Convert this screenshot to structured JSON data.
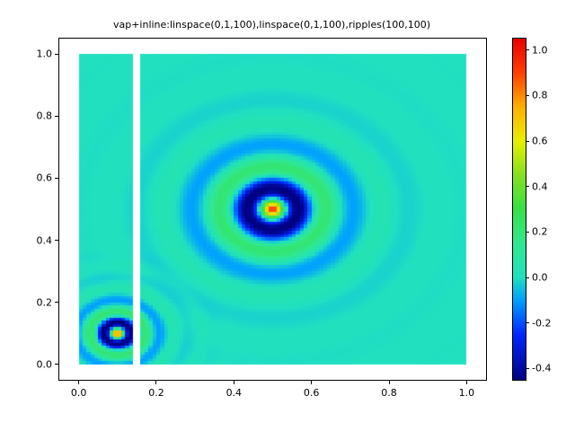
{
  "figure": {
    "background": "#ffffff"
  },
  "chart_data": {
    "type": "heatmap",
    "title": "vap+inline:linspace(0,1,100),linspace(0,1,100),ripples(100,100)",
    "x_range": [
      0,
      1
    ],
    "y_range": [
      0,
      1
    ],
    "grid_n": 100,
    "function": "ripples(100,100)",
    "ripple_sources": [
      {
        "cx": 0.5,
        "cy": 0.5,
        "amplitude": 1.0,
        "wavenumber": 44,
        "decay": 11
      },
      {
        "cx": 0.1,
        "cy": 0.1,
        "amplitude": 1.0,
        "wavenumber": 85,
        "decay": 21
      }
    ],
    "masked_column": {
      "x0": 0.14,
      "x1": 0.158
    },
    "zlim": [
      -0.45,
      1.05
    ],
    "axes_xlim": [
      -0.05,
      1.05
    ],
    "axes_ylim": [
      -0.05,
      1.05
    ],
    "x_ticks": [
      0,
      0.2,
      0.4,
      0.6,
      0.8,
      1
    ],
    "x_tick_labels": [
      "0.0",
      "0.2",
      "0.4",
      "0.6",
      "0.8",
      "1.0"
    ],
    "y_ticks": [
      0,
      0.2,
      0.4,
      0.6,
      0.8,
      1
    ],
    "y_tick_labels": [
      "0.0",
      "0.2",
      "0.4",
      "0.6",
      "0.8",
      "1.0"
    ],
    "colorbar": {
      "ticks": [
        1,
        0.8,
        0.6,
        0.4,
        0.2,
        0,
        -0.2,
        -0.4
      ],
      "tick_labels": [
        "1.0",
        "0.8",
        "0.6",
        "0.4",
        "0.2",
        "0.0",
        "-0.2",
        "-0.4"
      ]
    },
    "colormap_stops": [
      [
        -0.45,
        "#000082"
      ],
      [
        -0.25,
        "#0028ff"
      ],
      [
        -0.1,
        "#00a0ff"
      ],
      [
        0.0,
        "#20e0c0"
      ],
      [
        0.15,
        "#30e890"
      ],
      [
        0.3,
        "#38e048"
      ],
      [
        0.45,
        "#86e020"
      ],
      [
        0.6,
        "#e8f000"
      ],
      [
        0.75,
        "#ffb000"
      ],
      [
        0.9,
        "#ff4000"
      ],
      [
        1.05,
        "#e80000"
      ]
    ]
  }
}
